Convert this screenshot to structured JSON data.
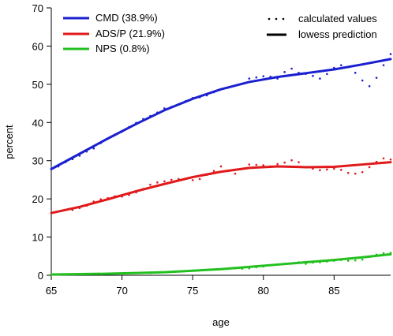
{
  "chart_data": {
    "type": "line",
    "xlabel": "age",
    "ylabel": "percent",
    "xlim": [
      65,
      89
    ],
    "ylim": [
      0,
      70
    ],
    "xticks": [
      65,
      70,
      75,
      80,
      85
    ],
    "yticks": [
      0,
      10,
      20,
      30,
      40,
      50,
      60,
      70
    ],
    "grid": false,
    "legend_left": {
      "placement": "top-left",
      "entries": [
        "CMD (38.9%)",
        "ADS/P (21.9%)",
        "NPS (0.8%)"
      ]
    },
    "legend_right": {
      "placement": "top-right",
      "entries": [
        "calculated values",
        "lowess prediction"
      ]
    },
    "series": [
      {
        "name": "CMD (38.9%)",
        "color": "#1a1fd0",
        "lowess": {
          "x": [
            65,
            67,
            69,
            71,
            73,
            75,
            77,
            79,
            81,
            83,
            85,
            87,
            89
          ],
          "y": [
            27.8,
            31.8,
            35.8,
            39.6,
            43.2,
            46.2,
            48.7,
            50.6,
            51.9,
            52.9,
            53.9,
            55.2,
            56.6
          ]
        },
        "calculated": {
          "x": [
            65.5,
            66,
            66.5,
            67,
            67.5,
            68,
            68.5,
            69,
            69.5,
            70,
            70.5,
            71,
            71.5,
            72,
            72.5,
            73,
            73.5,
            74,
            74.5,
            75,
            75.5,
            76,
            76.5,
            77,
            77.5,
            78,
            78.5,
            79,
            79.5,
            80,
            80.5,
            81,
            81.5,
            82,
            82.5,
            83,
            83.5,
            84,
            84.5,
            85,
            85.5,
            86,
            86.5,
            87,
            87.5,
            88,
            88.5,
            89
          ],
          "y": [
            28.5,
            29.6,
            30.4,
            31.3,
            32.4,
            33.2,
            34.6,
            35.8,
            36.7,
            37.6,
            38.8,
            39.9,
            40.9,
            41.7,
            42.6,
            43.7,
            44.1,
            44.8,
            45.6,
            46.4,
            46.6,
            47.1,
            47.9,
            48.7,
            49.1,
            49.6,
            50.1,
            51.5,
            51.8,
            52.1,
            52.0,
            51.5,
            53.2,
            54.1,
            53.0,
            52.7,
            52.2,
            51.5,
            52.7,
            54.3,
            55.0,
            54.5,
            53.0,
            51.0,
            49.5,
            51.7,
            55.0,
            57.9
          ]
        }
      },
      {
        "name": "ADS/P (21.9%)",
        "color": "#e0191b",
        "lowess": {
          "x": [
            65,
            67,
            69,
            71,
            73,
            75,
            77,
            79,
            81,
            83,
            85,
            87,
            89
          ],
          "y": [
            16.3,
            17.9,
            19.9,
            22.0,
            23.9,
            25.7,
            27.1,
            28.1,
            28.5,
            28.3,
            28.4,
            29.0,
            29.6
          ]
        },
        "calculated": {
          "x": [
            66.5,
            67,
            67.5,
            68,
            68.5,
            69,
            69.5,
            70,
            70.5,
            71,
            71.5,
            72,
            72.5,
            73,
            73.5,
            74,
            74.5,
            75,
            75.5,
            76,
            76.5,
            77,
            77.5,
            78,
            78.5,
            79,
            79.5,
            80,
            80.5,
            81,
            81.5,
            82,
            82.5,
            83,
            83.5,
            84,
            84.5,
            85,
            85.5,
            86,
            86.5,
            87,
            87.5,
            88,
            88.5,
            89
          ],
          "y": [
            17.1,
            17.6,
            18.2,
            19.3,
            19.9,
            20.2,
            20.7,
            20.6,
            21.0,
            21.7,
            22.6,
            23.7,
            24.3,
            24.6,
            25.0,
            25.2,
            25.3,
            24.9,
            25.2,
            26.3,
            27.3,
            28.5,
            27.4,
            26.6,
            27.8,
            29.0,
            28.9,
            28.8,
            28.5,
            29.1,
            29.5,
            30.1,
            29.6,
            28.3,
            27.9,
            27.5,
            27.7,
            27.9,
            27.6,
            26.8,
            26.6,
            27.0,
            28.3,
            29.7,
            30.6,
            30.3
          ]
        }
      },
      {
        "name": "NPS (0.8%)",
        "color": "#22c01e",
        "lowess": {
          "x": [
            65,
            67,
            69,
            71,
            73,
            75,
            77,
            79,
            81,
            83,
            85,
            87,
            89
          ],
          "y": [
            0.2,
            0.3,
            0.4,
            0.6,
            0.8,
            1.2,
            1.6,
            2.2,
            2.8,
            3.4,
            4.0,
            4.7,
            5.5
          ]
        },
        "calculated": {
          "x": [
            72,
            72.5,
            73,
            73.5,
            74,
            74.5,
            75,
            75.5,
            76,
            76.5,
            77,
            77.5,
            78,
            78.5,
            79,
            79.5,
            80,
            80.5,
            81,
            81.5,
            82,
            82.5,
            83,
            83.5,
            84,
            84.5,
            85,
            85.5,
            86,
            86.5,
            87,
            87.5,
            88,
            88.5,
            89
          ],
          "y": [
            0.6,
            0.7,
            0.8,
            0.9,
            1.0,
            1.1,
            1.2,
            1.3,
            1.4,
            1.5,
            1.6,
            1.7,
            1.8,
            1.7,
            1.8,
            2.1,
            2.3,
            2.6,
            2.8,
            3.0,
            3.1,
            3.4,
            3.0,
            3.3,
            3.4,
            3.6,
            3.8,
            4.0,
            3.8,
            3.9,
            4.1,
            4.8,
            5.4,
            5.8,
            5.9
          ]
        }
      }
    ]
  }
}
